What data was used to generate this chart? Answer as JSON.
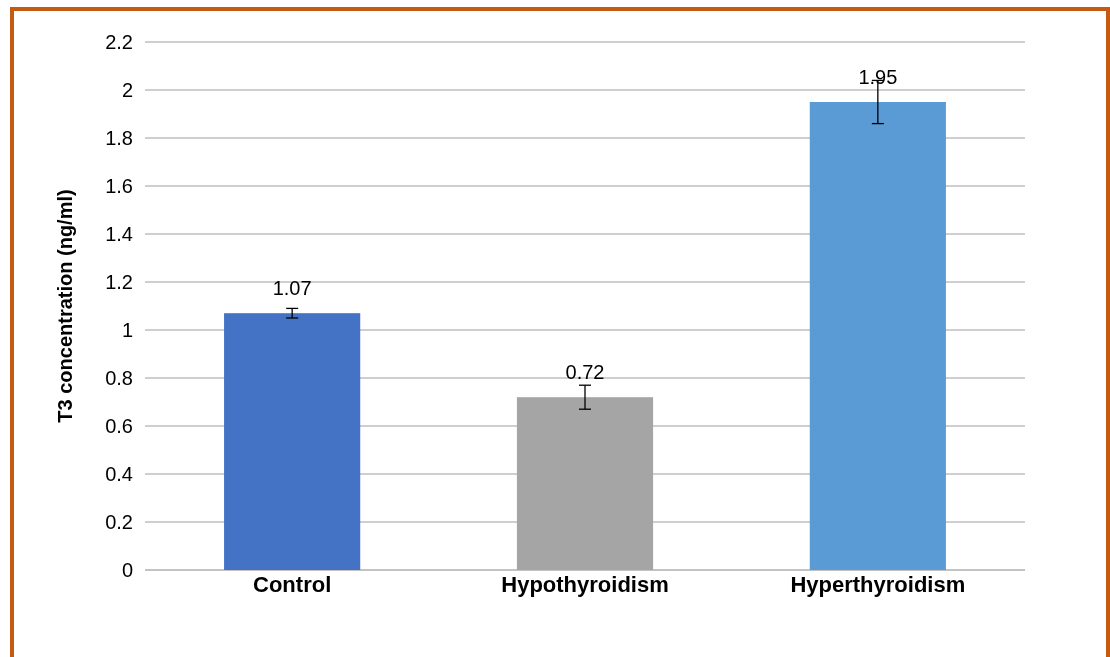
{
  "chart_data": {
    "type": "bar",
    "ylabel": "T3 concentration (ng/ml)",
    "categories": [
      "Control",
      "Hypothyroidism",
      "Hyperthyroidism"
    ],
    "values": [
      1.07,
      0.72,
      1.95
    ],
    "colors": [
      "#4472c4",
      "#a5a5a5",
      "#5b9bd5"
    ],
    "errors": [
      0.02,
      0.05,
      0.09
    ],
    "data_labels": true,
    "ylim": [
      0,
      2.2
    ],
    "yticks": [
      0,
      0.2,
      0.4,
      0.6,
      0.8,
      1,
      1.2,
      1.4,
      1.6,
      1.8,
      2,
      2.2
    ],
    "grid": "y"
  }
}
